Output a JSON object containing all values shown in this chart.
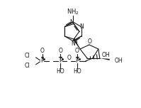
{
  "background_color": "#ffffff",
  "line_color": "#1a1a1a",
  "line_width": 0.8,
  "font_size": 5.5,
  "figsize": [
    1.99,
    1.52
  ],
  "dpi": 100,
  "xlim": [
    0,
    199
  ],
  "ylim": [
    0,
    152
  ]
}
